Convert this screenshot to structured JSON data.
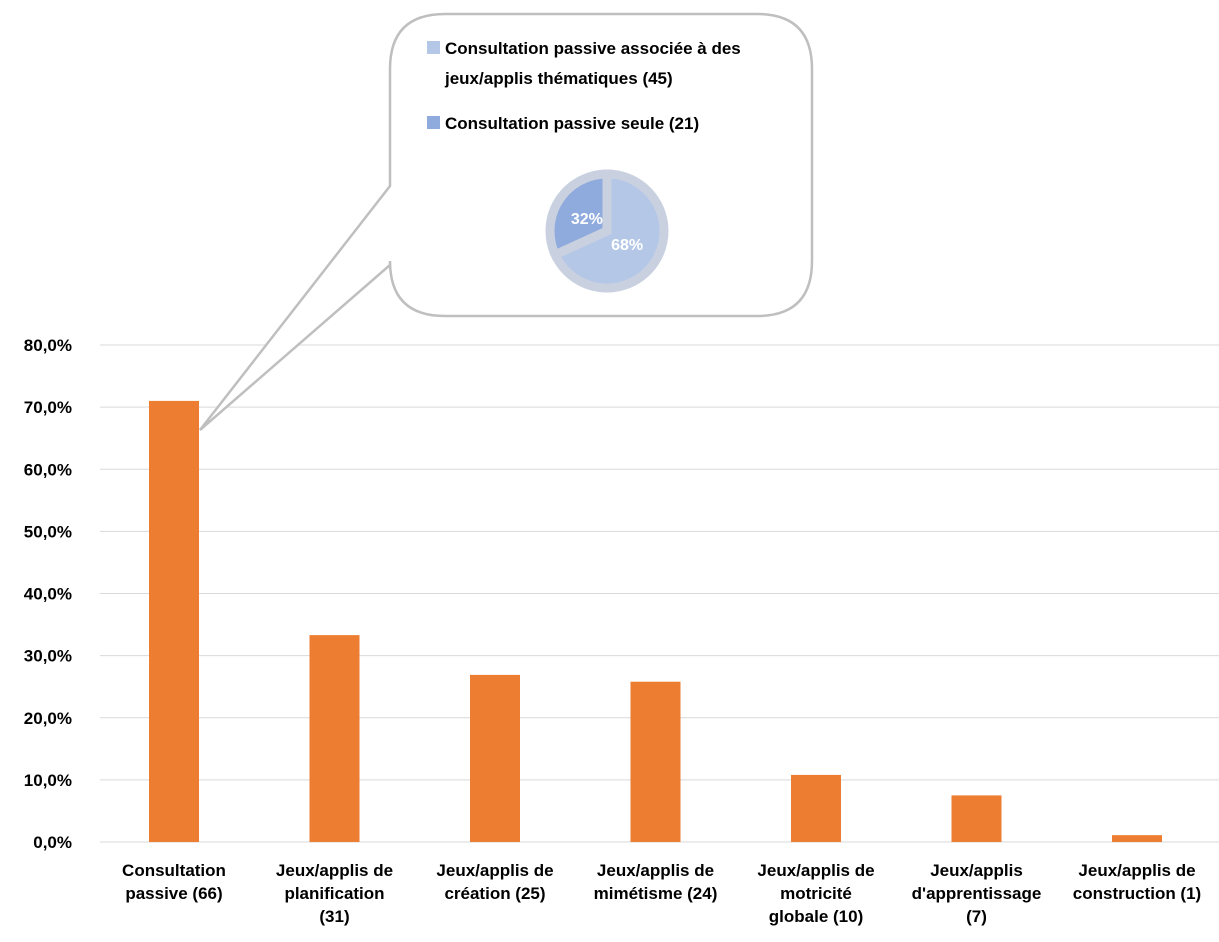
{
  "colors": {
    "bar": "#ED7D31",
    "gridline": "#D9D9D9",
    "callout_border": "#BFBFBF",
    "pie_light": "#B4C7E7",
    "pie_dark": "#8FAADC",
    "pie_ring": "#C9D1E1"
  },
  "chart_data": [
    {
      "type": "bar",
      "categories": [
        "Consultation passive (66)",
        "Jeux/applis de planification (31)",
        "Jeux/applis de création (25)",
        "Jeux/applis de mimétisme (24)",
        "Jeux/applis de motricité globale (10)",
        "Jeux/applis d'apprentissage (7)",
        "Jeux/applis de construction (1)"
      ],
      "category_lines": [
        [
          "Consultation",
          "passive (66)"
        ],
        [
          "Jeux/applis de",
          "planification",
          "(31)"
        ],
        [
          "Jeux/applis de",
          "création (25)"
        ],
        [
          "Jeux/applis de",
          "mimétisme (24)"
        ],
        [
          "Jeux/applis de",
          "motricité",
          "globale (10)"
        ],
        [
          "Jeux/applis",
          "d'apprentissage",
          "(7)"
        ],
        [
          "Jeux/applis de",
          "construction (1)"
        ]
      ],
      "values": [
        71.0,
        33.3,
        26.9,
        25.8,
        10.8,
        7.5,
        1.1
      ],
      "ylim": [
        0,
        80
      ],
      "yticks": [
        "0,0%",
        "10,0%",
        "20,0%",
        "30,0%",
        "40,0%",
        "50,0%",
        "60,0%",
        "70,0%",
        "80,0%"
      ],
      "grid": true,
      "title": "",
      "xlabel": "",
      "ylabel": ""
    },
    {
      "type": "pie",
      "callout_from_category": "Consultation passive (66)",
      "legend_position": "top",
      "slices": [
        {
          "label_lines": [
            "Consultation passive associée à des",
            "jeux/applis thématiques (45)"
          ],
          "value": 45,
          "percent_label": "68%",
          "color_key": "pie_light"
        },
        {
          "label_lines": [
            "Consultation passive seule (21)"
          ],
          "value": 21,
          "percent_label": "32%",
          "color_key": "pie_dark"
        }
      ]
    }
  ]
}
